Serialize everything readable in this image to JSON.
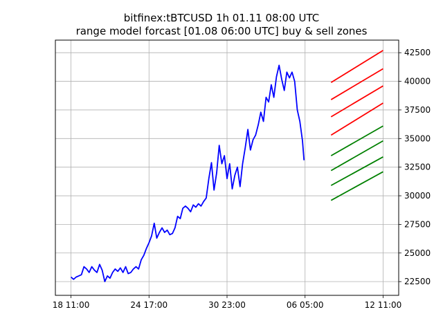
{
  "chart_data": {
    "type": "line",
    "title": "bitfinex:tBTCUSD 1h 01.11 08:00 UTC",
    "subtitle": "range model forcast [01.08 06:00 UTC] buy & sell zones",
    "xlabel": "",
    "ylabel": "",
    "x_ticks": [
      "18 11:00",
      "24 17:00",
      "30 23:00",
      "06 05:00",
      "12 11:00"
    ],
    "x_tick_index": [
      0,
      150,
      300,
      450,
      600
    ],
    "xlim": [
      -30,
      630
    ],
    "y_ticks": [
      22500,
      25000,
      27500,
      30000,
      32500,
      35000,
      37500,
      40000,
      42500
    ],
    "ylim": [
      21300,
      43600
    ],
    "y_axis_side": "right",
    "grid": true,
    "series": [
      {
        "color": "#0000ff",
        "points": [
          [
            0,
            22900
          ],
          [
            5,
            22700
          ],
          [
            10,
            22900
          ],
          [
            15,
            23000
          ],
          [
            20,
            23100
          ],
          [
            25,
            23800
          ],
          [
            30,
            23600
          ],
          [
            35,
            23300
          ],
          [
            40,
            23800
          ],
          [
            45,
            23500
          ],
          [
            50,
            23300
          ],
          [
            55,
            24000
          ],
          [
            60,
            23500
          ],
          [
            65,
            22500
          ],
          [
            70,
            23000
          ],
          [
            75,
            22800
          ],
          [
            80,
            23300
          ],
          [
            85,
            23600
          ],
          [
            90,
            23400
          ],
          [
            95,
            23700
          ],
          [
            100,
            23300
          ],
          [
            105,
            23800
          ],
          [
            110,
            23200
          ],
          [
            115,
            23300
          ],
          [
            120,
            23600
          ],
          [
            125,
            23800
          ],
          [
            130,
            23600
          ],
          [
            135,
            24400
          ],
          [
            140,
            24800
          ],
          [
            145,
            25400
          ],
          [
            150,
            25900
          ],
          [
            155,
            26500
          ],
          [
            160,
            27600
          ],
          [
            165,
            26300
          ],
          [
            170,
            26800
          ],
          [
            175,
            27200
          ],
          [
            180,
            26800
          ],
          [
            185,
            27000
          ],
          [
            190,
            26600
          ],
          [
            195,
            26700
          ],
          [
            200,
            27200
          ],
          [
            205,
            28200
          ],
          [
            210,
            28000
          ],
          [
            215,
            28900
          ],
          [
            220,
            29100
          ],
          [
            225,
            28900
          ],
          [
            230,
            28600
          ],
          [
            235,
            29200
          ],
          [
            240,
            29000
          ],
          [
            245,
            29300
          ],
          [
            250,
            29100
          ],
          [
            255,
            29500
          ],
          [
            260,
            29800
          ],
          [
            265,
            31500
          ],
          [
            270,
            32900
          ],
          [
            275,
            30500
          ],
          [
            280,
            32000
          ],
          [
            285,
            34400
          ],
          [
            290,
            32800
          ],
          [
            295,
            33500
          ],
          [
            300,
            31500
          ],
          [
            305,
            32800
          ],
          [
            310,
            30600
          ],
          [
            315,
            31800
          ],
          [
            320,
            32500
          ],
          [
            325,
            30800
          ],
          [
            330,
            32800
          ],
          [
            335,
            34200
          ],
          [
            340,
            35800
          ],
          [
            345,
            34000
          ],
          [
            350,
            34900
          ],
          [
            355,
            35300
          ],
          [
            360,
            36200
          ],
          [
            365,
            37300
          ],
          [
            370,
            36500
          ],
          [
            375,
            38600
          ],
          [
            380,
            38200
          ],
          [
            385,
            39700
          ],
          [
            390,
            38600
          ],
          [
            395,
            40400
          ],
          [
            400,
            41400
          ],
          [
            405,
            40200
          ],
          [
            410,
            39200
          ],
          [
            415,
            40800
          ],
          [
            420,
            40300
          ],
          [
            425,
            40800
          ],
          [
            430,
            40000
          ],
          [
            435,
            37500
          ],
          [
            440,
            36500
          ],
          [
            445,
            34800
          ],
          [
            448,
            33100
          ]
        ]
      }
    ],
    "zones": {
      "sell": {
        "color": "#ff0000",
        "lines": [
          [
            [
              500,
              39900
            ],
            [
              600,
              42700
            ]
          ],
          [
            [
              500,
              38400
            ],
            [
              600,
              41100
            ]
          ],
          [
            [
              500,
              36900
            ],
            [
              600,
              39600
            ]
          ],
          [
            [
              500,
              35300
            ],
            [
              600,
              38100
            ]
          ]
        ]
      },
      "buy": {
        "color": "#008000",
        "lines": [
          [
            [
              500,
              33500
            ],
            [
              600,
              36100
            ]
          ],
          [
            [
              500,
              32200
            ],
            [
              600,
              34800
            ]
          ],
          [
            [
              500,
              30900
            ],
            [
              600,
              33400
            ]
          ],
          [
            [
              500,
              29600
            ],
            [
              600,
              32100
            ]
          ]
        ]
      }
    }
  }
}
